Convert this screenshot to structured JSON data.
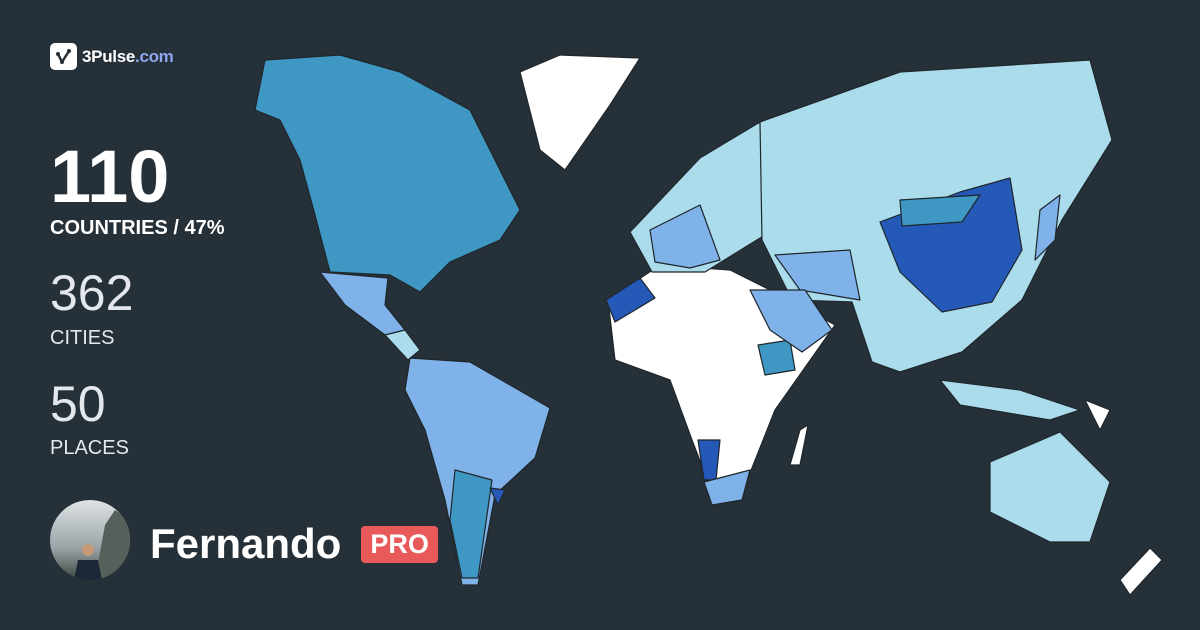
{
  "brand": {
    "name": "3Pulse",
    "tld": ".com",
    "icon": "pulse-check-icon"
  },
  "stats": {
    "countries": {
      "value": "110",
      "label": "COUNTRIES / 47%"
    },
    "cities": {
      "value": "362",
      "label": "CITIES"
    },
    "places": {
      "value": "50",
      "label": "PLACES"
    }
  },
  "user": {
    "name": "Fernando",
    "badge": "PRO"
  },
  "map": {
    "background": "#263038",
    "palette": {
      "unvisited": "#ffffff",
      "level1": "#aadcec",
      "level2": "#7fb2e8",
      "level3": "#3f97c3",
      "level4": "#2459b8"
    }
  }
}
